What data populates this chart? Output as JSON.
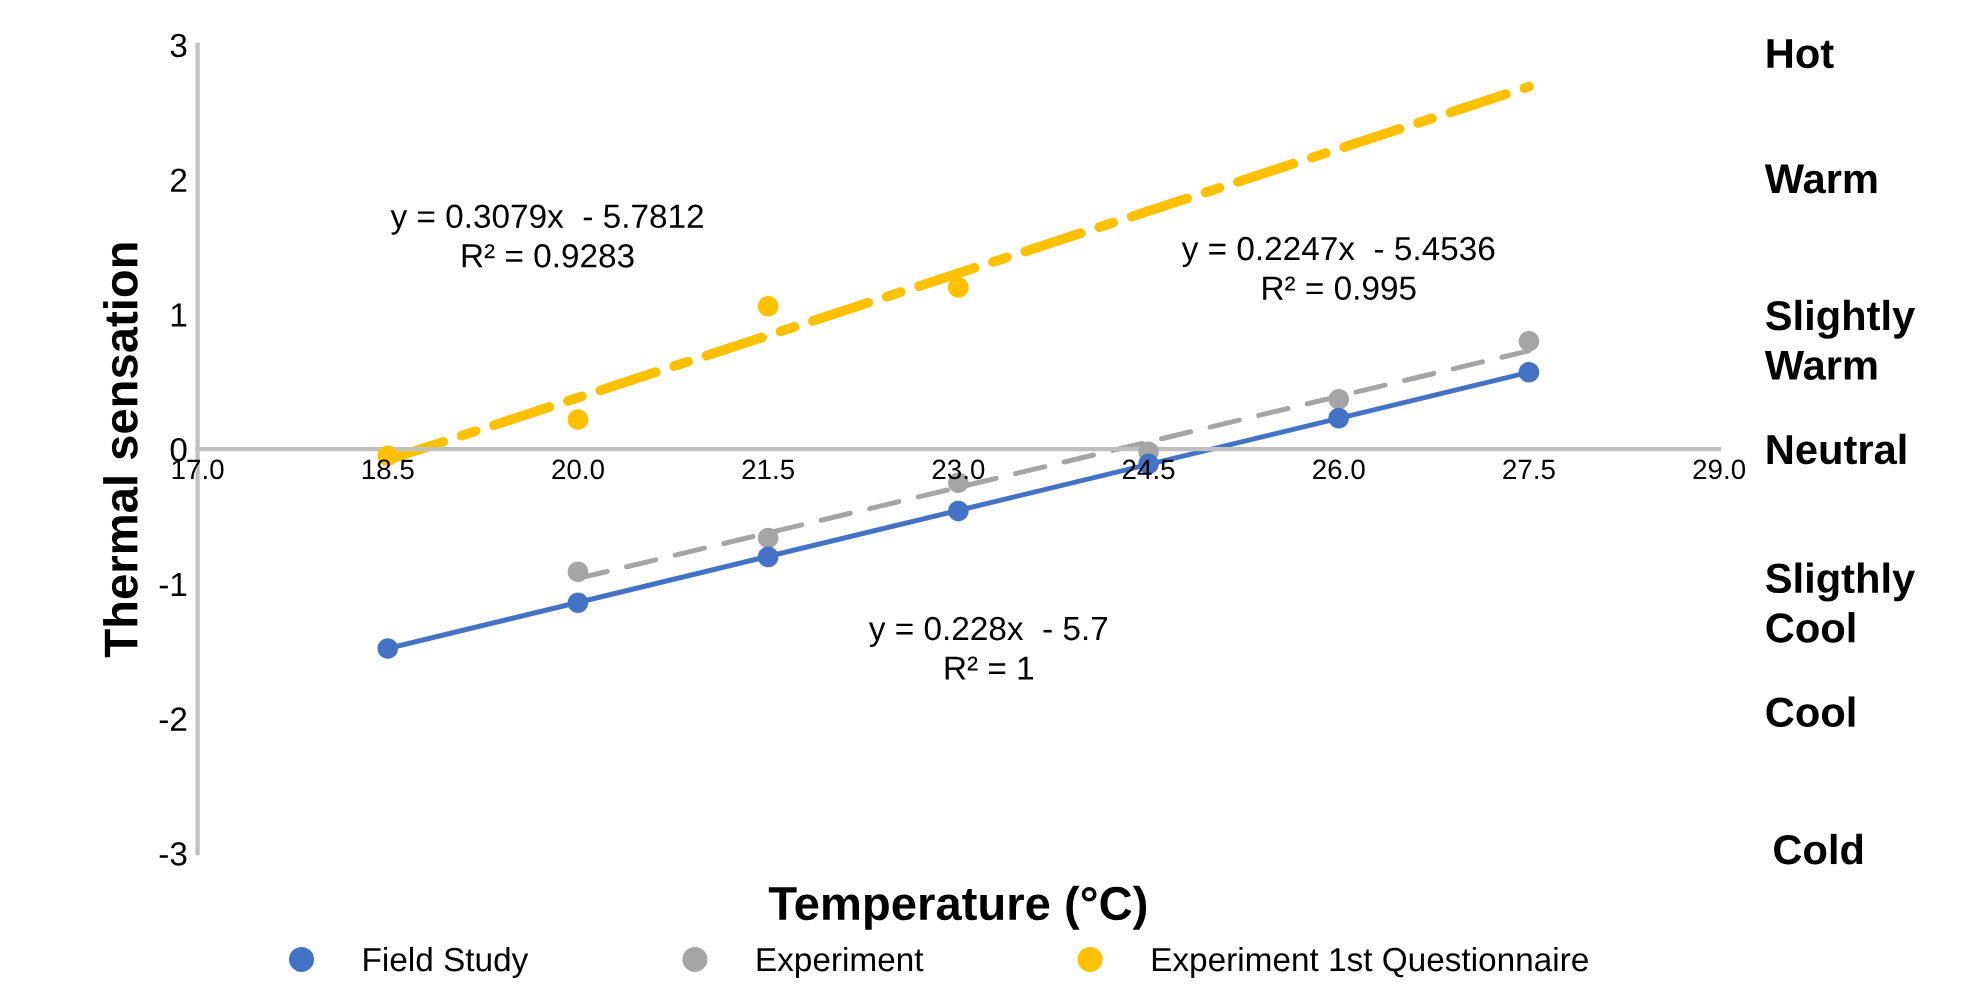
{
  "chart_data": {
    "type": "scatter",
    "xlabel": "Temperature (°C)",
    "ylabel": "Thermal sensation",
    "xlim": [
      17,
      29
    ],
    "xticks": [
      {
        "value": 17,
        "label": "17.0"
      },
      {
        "value": 18.5,
        "label": "18.5"
      },
      {
        "value": 20,
        "label": "20.0"
      },
      {
        "value": 21.5,
        "label": "21.5"
      },
      {
        "value": 23,
        "label": "23.0"
      },
      {
        "value": 24.5,
        "label": "24.5"
      },
      {
        "value": 26,
        "label": "26.0"
      },
      {
        "value": 27.5,
        "label": "27.5"
      },
      {
        "value": 29,
        "label": "29.0"
      }
    ],
    "ylim": [
      -3,
      3
    ],
    "yticks": [
      -3,
      -2,
      -1,
      0,
      1,
      2,
      3
    ],
    "grid": false,
    "legend": "bottom",
    "marker": "circle",
    "series": [
      {
        "name": "Field Study",
        "color": "#4472c4",
        "x": [
          18.5,
          20,
          21.5,
          23,
          24.5,
          26,
          27.5
        ],
        "values": [
          -1.48,
          -1.14,
          -0.8,
          -0.46,
          -0.11,
          0.23,
          0.57
        ]
      },
      {
        "name": "Experiment",
        "color": "#a5a5a5",
        "x": [
          20,
          21.5,
          23,
          24.5,
          26,
          27.5
        ],
        "values": [
          -0.91,
          -0.66,
          -0.25,
          -0.02,
          0.37,
          0.8
        ]
      },
      {
        "name": "Experiment 1st Questionnaire",
        "color": "#ffc000",
        "x": [
          18.5,
          20,
          21.5,
          23
        ],
        "values": [
          -0.05,
          0.22,
          1.06,
          1.2
        ]
      },
      {
        "color": "#4472c4",
        "type": "line",
        "marker": "none",
        "line_style": "solid",
        "x": [
          18.5,
          27.5
        ],
        "values": [
          -1.48,
          0.57
        ]
      },
      {
        "color": "#a5a5a5",
        "type": "line",
        "marker": "none",
        "line_style": "dashed",
        "x": [
          20,
          27.5
        ],
        "values": [
          -0.96,
          0.73
        ]
      },
      {
        "color": "#ffc000",
        "type": "line",
        "marker": "none",
        "line_style": "dashdot",
        "x": [
          18.5,
          27.5
        ],
        "values": [
          -0.08,
          2.69
        ]
      }
    ],
    "annotations": [
      "y = 0.3079x  - 5.7812\nR² = 0.9283",
      "y = 0.2247x  - 5.4536\nR² = 0.995",
      "y = 0.228x  - 5.7\nR² = 1",
      "Hot",
      "Warm",
      "Slightly\nWarm",
      "Neutral",
      "Sligthly\nCool",
      "Cool",
      "Cold"
    ]
  }
}
